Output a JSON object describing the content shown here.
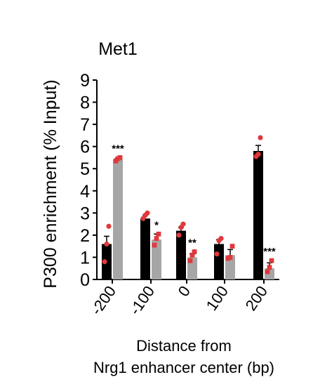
{
  "chart_data": {
    "type": "bar",
    "title": "Met1",
    "ylabel": "P300 enrichment (% Input)",
    "xlabel_line1": "Distance from",
    "xlabel_line2": "Nrg1 enhancer center  (bp)",
    "categories": [
      "-200",
      "-100",
      "0",
      "100",
      "200"
    ],
    "ylim": [
      0,
      9
    ],
    "yticks": [
      0,
      1,
      2,
      3,
      4,
      5,
      6,
      7,
      8,
      9
    ],
    "series": [
      {
        "color": "#000000",
        "values": [
          1.6,
          2.75,
          2.2,
          1.6,
          5.8
        ],
        "errors": [
          0.35,
          0.15,
          0.15,
          0.2,
          0.25
        ],
        "points": [
          [
            0.8,
            1.6,
            2.4
          ],
          [
            2.75,
            2.9,
            3.0
          ],
          [
            2.0,
            2.35,
            2.5
          ],
          [
            1.15,
            1.75,
            1.85
          ],
          [
            5.55,
            5.65,
            6.4
          ]
        ]
      },
      {
        "color": "#a6a6a6",
        "values": [
          5.4,
          1.8,
          1.0,
          1.1,
          0.5
        ],
        "errors": [
          0.07,
          0.25,
          0.15,
          0.25,
          0.25
        ],
        "points": [
          [
            5.35,
            5.45,
            5.5
          ],
          [
            1.55,
            1.85,
            2.05
          ],
          [
            0.85,
            1.1,
            1.25
          ],
          [
            0.95,
            1.0,
            1.5
          ],
          [
            0.35,
            0.55,
            0.85
          ]
        ]
      }
    ],
    "significance": [
      "***",
      "*",
      "**",
      "",
      "***"
    ],
    "point_color": "#e0383c"
  }
}
